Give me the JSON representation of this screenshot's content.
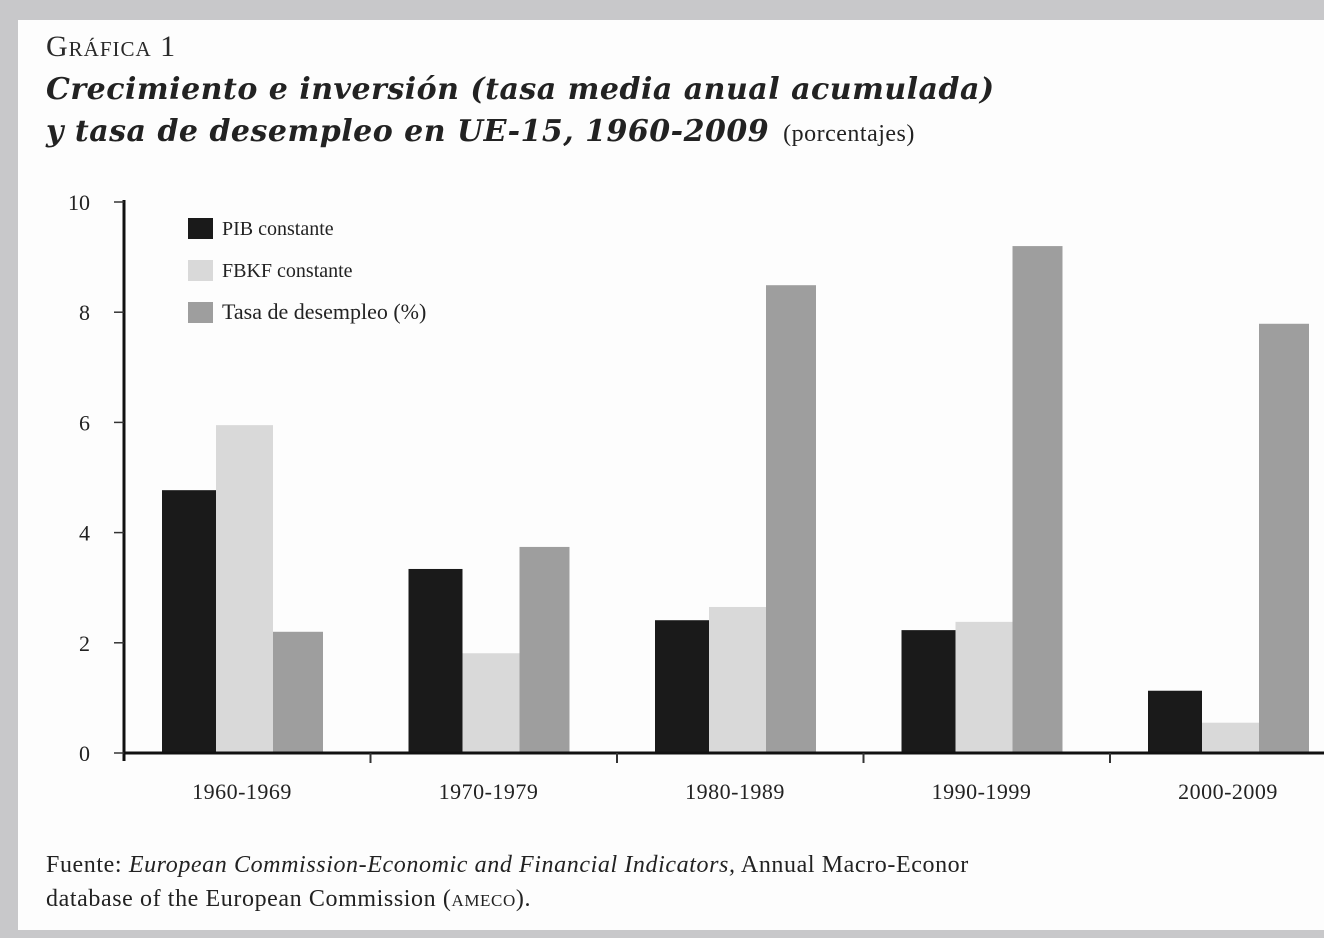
{
  "header": {
    "label": "Gráfica 1",
    "title_line1": "Crecimiento e inversión (tasa media anual acumulada)",
    "title_line2": "y tasa de desempleo en UE-15, 1960-2009",
    "unit": "(porcentajes)"
  },
  "source": {
    "prefix": "Fuente:",
    "italic": "European Commission-Economic and Financial Indicators,",
    "rest": "Annual Macro-Econor",
    "line2_a": "database of the European Commission (",
    "line2_sc": "ameco",
    "line2_b": ")."
  },
  "chart_data": {
    "type": "bar",
    "title": "Crecimiento e inversión (tasa media anual acumulada) y tasa de desempleo en UE-15, 1960-2009 (porcentajes)",
    "xlabel": "",
    "ylabel": "",
    "ylim": [
      0,
      10
    ],
    "yticks": [
      0,
      2,
      4,
      6,
      8,
      10
    ],
    "grid": false,
    "legend_position": "top-left",
    "categories": [
      "1960-1969",
      "1970-1979",
      "1980-1989",
      "1990-1999",
      "2000-2009"
    ],
    "series": [
      {
        "name": "PIB constante",
        "color": "#1a1a1a",
        "values": [
          4.77,
          3.34,
          2.41,
          2.23,
          1.13
        ]
      },
      {
        "name": "FBKF constante",
        "color": "#d9d9d9",
        "values": [
          5.95,
          1.81,
          2.65,
          2.38,
          0.55
        ]
      },
      {
        "name": "Tasa de desempleo (%)",
        "color": "#9e9e9e",
        "values": [
          2.2,
          3.74,
          8.49,
          9.2,
          7.79
        ]
      }
    ]
  }
}
